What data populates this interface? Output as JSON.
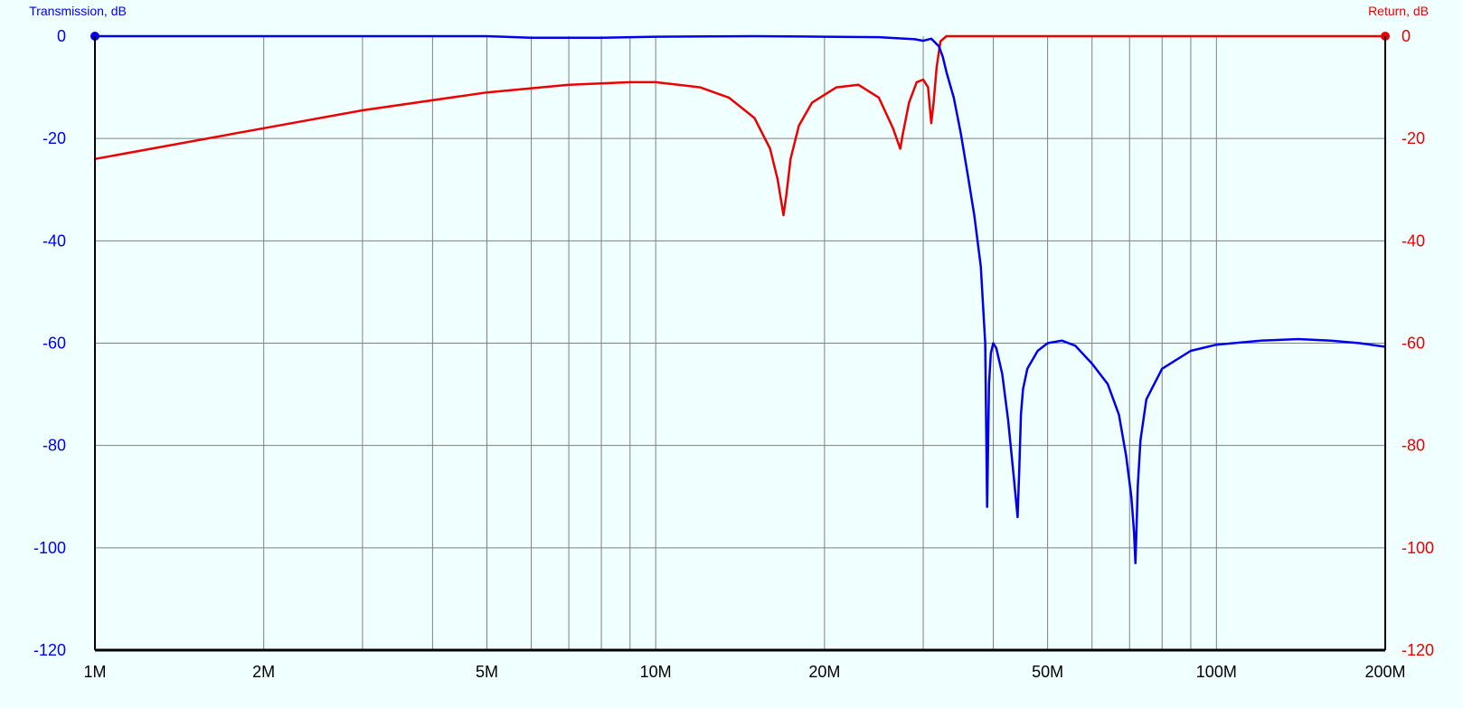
{
  "chart_data": {
    "type": "line",
    "x_scale": "log",
    "xlim": [
      1,
      200
    ],
    "x_unit": "MHz",
    "x_tick_values": [
      1,
      2,
      5,
      10,
      20,
      50,
      100,
      200
    ],
    "x_tick_labels": [
      "1M",
      "2M",
      "5M",
      "10M",
      "20M",
      "50M",
      "100M",
      "200M"
    ],
    "y_left_label": "Transmission, dB",
    "y_right_label": "Return, dB",
    "ylim": [
      -120,
      0
    ],
    "y_ticks": [
      0,
      -20,
      -40,
      -60,
      -80,
      -100,
      -120
    ],
    "y_tick_labels": [
      "0",
      "-20",
      "-40",
      "-60",
      "-80",
      "-100",
      "-120"
    ],
    "grid": true,
    "colors": {
      "transmission": "#0000ee",
      "return": "#ee0000",
      "background": "#f0ffff",
      "grid": "#808080",
      "frame": "#000000"
    },
    "series": [
      {
        "key": "transmission",
        "axis": "left",
        "x": [
          1,
          2,
          5,
          6,
          8,
          10,
          15,
          20,
          25,
          29,
          30,
          31,
          32,
          32.5,
          33,
          34,
          35,
          36,
          37,
          38,
          38.7,
          39.0,
          39.3,
          39.6,
          40.0,
          40.5,
          41.5,
          42.5,
          43.5,
          44.2,
          44.5,
          44.8,
          45.2,
          46.0,
          48,
          50,
          53,
          56,
          60,
          64,
          67,
          69,
          70.5,
          71.3,
          71.7,
          72.0,
          72.4,
          73.2,
          75,
          80,
          90,
          100,
          120,
          140,
          160,
          180,
          200
        ],
        "y": [
          0,
          0,
          0,
          -0.3,
          -0.3,
          -0.1,
          0,
          -0.1,
          -0.2,
          -0.6,
          -0.9,
          -0.5,
          -2,
          -4,
          -7,
          -12,
          -19,
          -27,
          -35,
          -45,
          -60,
          -92,
          -68,
          -62,
          -60,
          -61,
          -66,
          -75,
          -86,
          -94,
          -85,
          -74,
          -69,
          -65,
          -61.5,
          -60,
          -59.5,
          -60.5,
          -64,
          -68,
          -74,
          -82,
          -90,
          -97,
          -103,
          -97,
          -88,
          -79,
          -71,
          -65,
          -61.5,
          -60.3,
          -59.5,
          -59.2,
          -59.5,
          -60,
          -60.7
        ]
      },
      {
        "key": "return",
        "axis": "right",
        "x": [
          1,
          2,
          3,
          5,
          7,
          9,
          10,
          12,
          13.5,
          15,
          16,
          16.5,
          16.9,
          17.1,
          17.4,
          18,
          19,
          21,
          23,
          25,
          26.5,
          27.3,
          27.6,
          28.3,
          29.2,
          30.0,
          30.6,
          31.0,
          31.3,
          31.7,
          32.2,
          33,
          35,
          40,
          60,
          100,
          150,
          200
        ],
        "y": [
          -24,
          -18,
          -14.5,
          -11,
          -9.5,
          -9,
          -9,
          -10,
          -12,
          -16,
          -22,
          -28,
          -35,
          -31,
          -24,
          -17.5,
          -13,
          -10,
          -9.5,
          -12,
          -18,
          -22,
          -19,
          -13,
          -9,
          -8.5,
          -10,
          -17,
          -13,
          -6,
          -1,
          0,
          0,
          0,
          0,
          0,
          0,
          0
        ]
      }
    ]
  }
}
